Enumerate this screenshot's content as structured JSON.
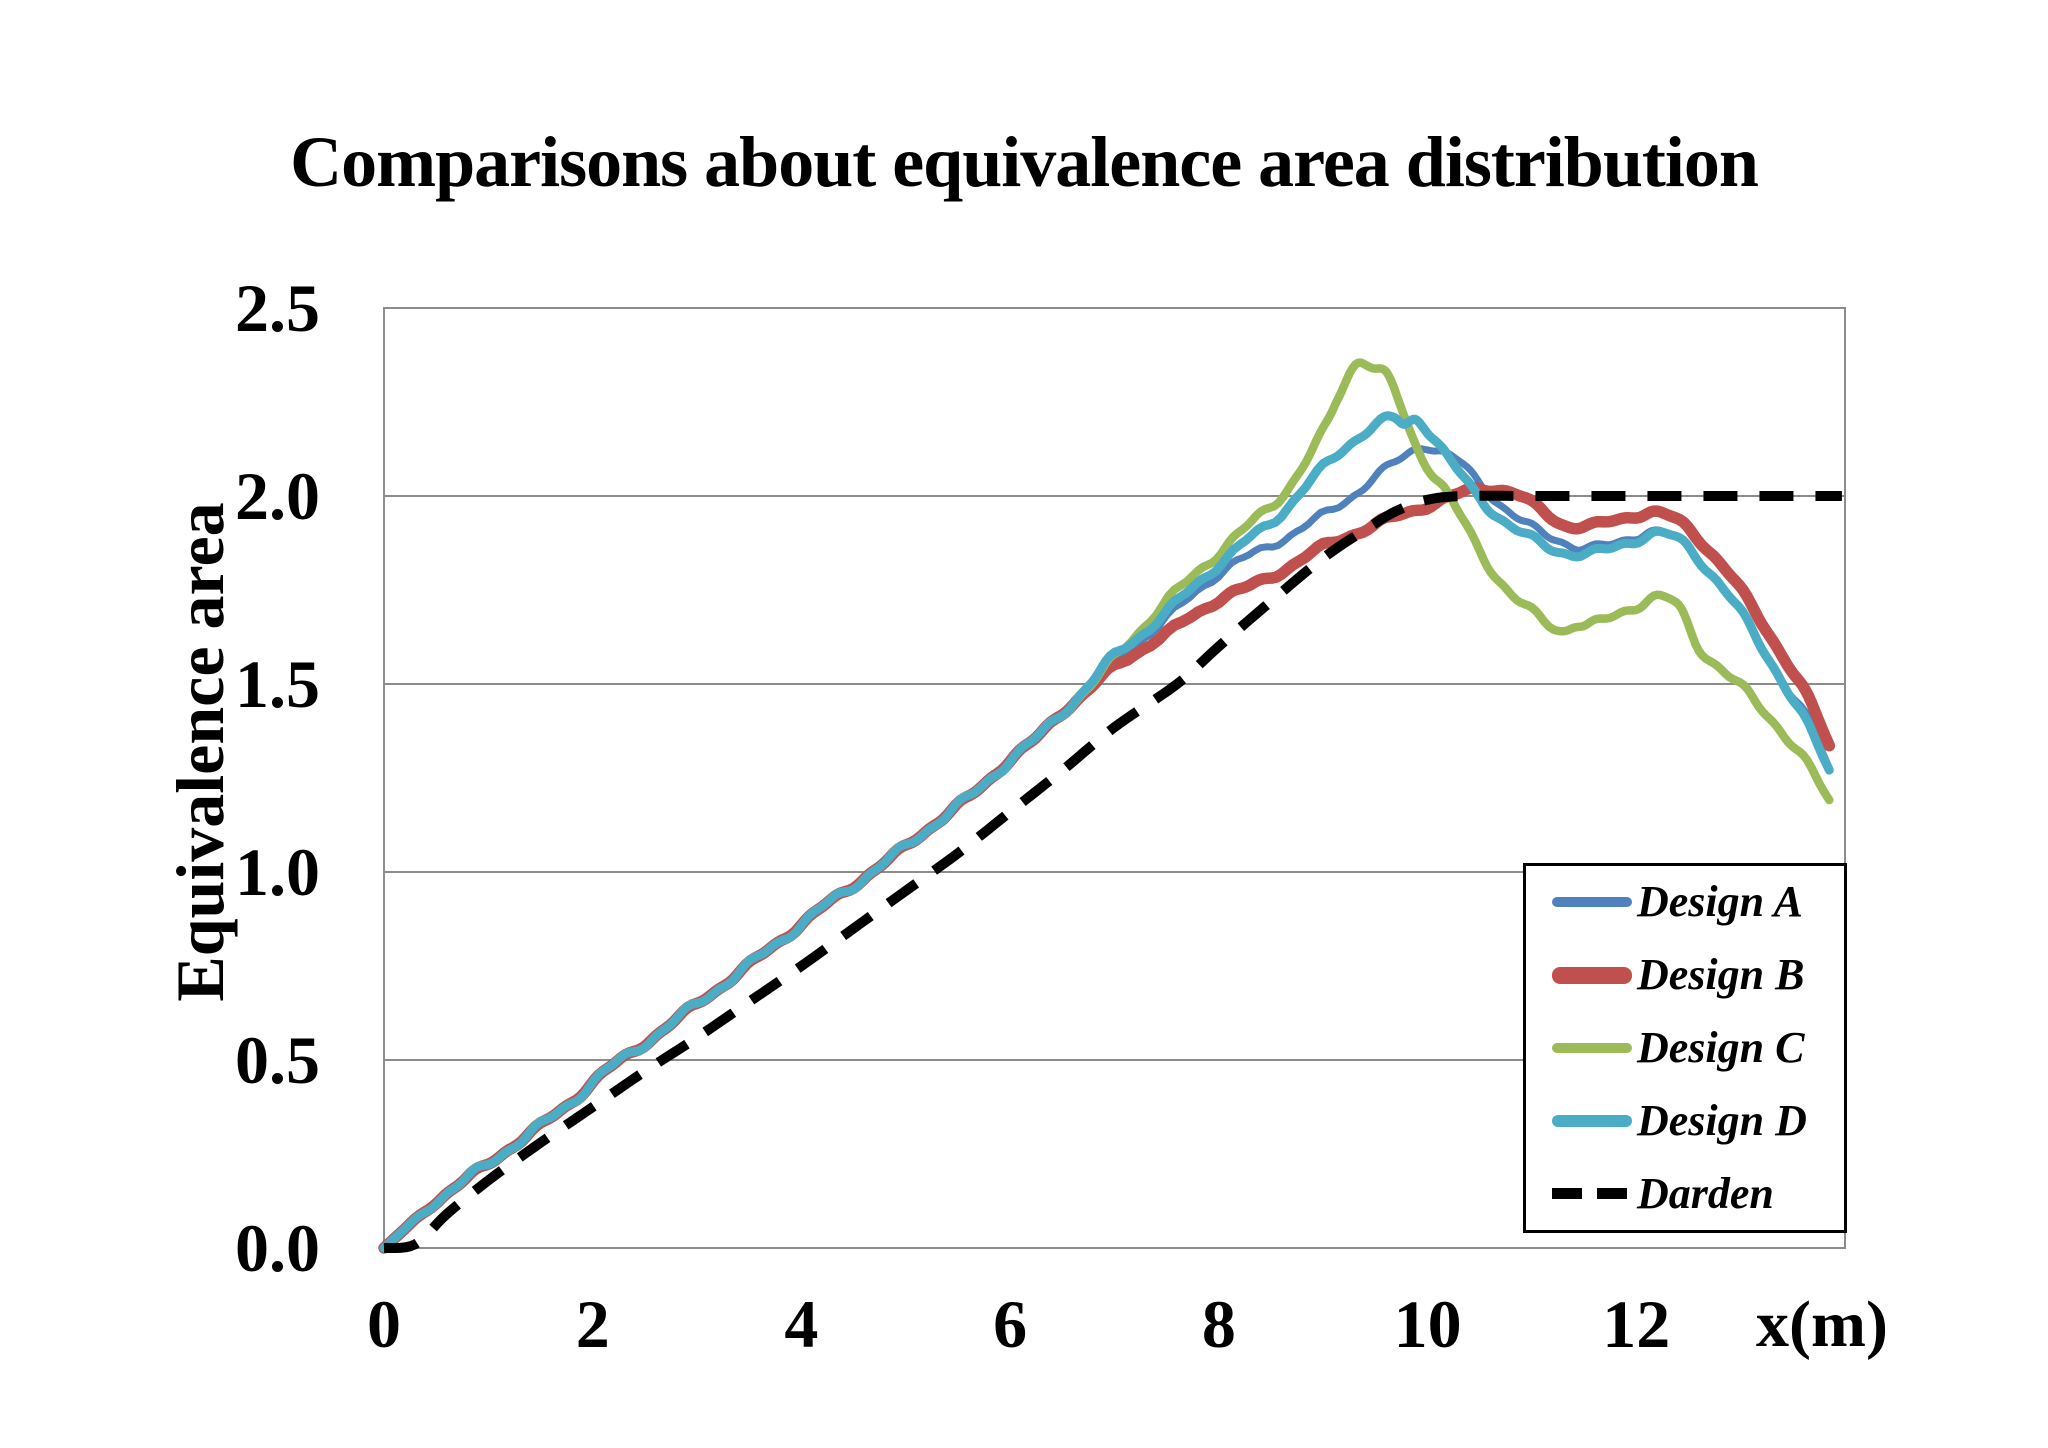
{
  "chart_data": {
    "type": "line",
    "title": "Comparisons about equivalence area distribution",
    "xlabel": "x(m)",
    "ylabel": "Equivalence area",
    "xlim": [
      0,
      14
    ],
    "ylim": [
      0,
      2.5
    ],
    "grid": "horizontal-only",
    "legend_position": "inside-bottom-right",
    "background_color": "#FFFFFF",
    "grid_color": "#8C8C8C",
    "text_color": "#000000",
    "legend_border_color": "#000000",
    "x_ticks": [
      {
        "v": 0,
        "label": "0"
      },
      {
        "v": 2,
        "label": "2"
      },
      {
        "v": 4,
        "label": "4"
      },
      {
        "v": 6,
        "label": "6"
      },
      {
        "v": 8,
        "label": "8"
      },
      {
        "v": 10,
        "label": "10"
      },
      {
        "v": 12,
        "label": "12"
      }
    ],
    "y_ticks": [
      {
        "v": 0.0,
        "label": "0.0"
      },
      {
        "v": 0.5,
        "label": "0.5"
      },
      {
        "v": 1.0,
        "label": "1.0"
      },
      {
        "v": 1.5,
        "label": "1.5"
      },
      {
        "v": 2.0,
        "label": "2.0"
      },
      {
        "v": 2.5,
        "label": "2.5"
      }
    ],
    "series": [
      {
        "name": "Design A",
        "id": "design-a",
        "color": "#4F81BD",
        "width": 7,
        "dash": null,
        "wobble": 0.008,
        "legend_swatch_height": 10,
        "points": [
          [
            0,
            0
          ],
          [
            0.2,
            0.05
          ],
          [
            0.4,
            0.1
          ],
          [
            0.6,
            0.145
          ],
          [
            0.8,
            0.185
          ],
          [
            1,
            0.225
          ],
          [
            1.2,
            0.265
          ],
          [
            1.5,
            0.325
          ],
          [
            1.8,
            0.39
          ],
          [
            2.1,
            0.465
          ],
          [
            2.4,
            0.525
          ],
          [
            2.7,
            0.585
          ],
          [
            3,
            0.65
          ],
          [
            3.3,
            0.71
          ],
          [
            3.6,
            0.775
          ],
          [
            3.9,
            0.84
          ],
          [
            4.2,
            0.905
          ],
          [
            4.5,
            0.965
          ],
          [
            4.8,
            1.025
          ],
          [
            5.1,
            1.09
          ],
          [
            5.4,
            1.155
          ],
          [
            5.7,
            1.22
          ],
          [
            6,
            1.3
          ],
          [
            6.25,
            1.355
          ],
          [
            6.5,
            1.425
          ],
          [
            6.75,
            1.49
          ],
          [
            7,
            1.56
          ],
          [
            7.5,
            1.675
          ],
          [
            8,
            1.795
          ],
          [
            8.4,
            1.855
          ],
          [
            8.8,
            1.915
          ],
          [
            9.2,
            1.985
          ],
          [
            9.5,
            2.05
          ],
          [
            9.75,
            2.1
          ],
          [
            9.95,
            2.135
          ],
          [
            10.1,
            2.12
          ],
          [
            10.3,
            2.09
          ],
          [
            10.5,
            2.035
          ],
          [
            10.75,
            1.965
          ],
          [
            11,
            1.915
          ],
          [
            11.25,
            1.885
          ],
          [
            11.5,
            1.86
          ],
          [
            11.75,
            1.87
          ],
          [
            12,
            1.895
          ],
          [
            12.15,
            1.905
          ],
          [
            12.4,
            1.885
          ],
          [
            12.65,
            1.815
          ],
          [
            12.9,
            1.73
          ],
          [
            13.15,
            1.625
          ],
          [
            13.4,
            1.51
          ],
          [
            13.65,
            1.4
          ],
          [
            13.85,
            1.275
          ]
        ]
      },
      {
        "name": "Design B",
        "id": "design-b",
        "color": "#C0504D",
        "width": 11.5,
        "dash": null,
        "wobble": 0.006,
        "legend_swatch_height": 17,
        "points": [
          [
            0,
            0
          ],
          [
            0.2,
            0.05
          ],
          [
            0.4,
            0.1
          ],
          [
            0.6,
            0.145
          ],
          [
            0.8,
            0.185
          ],
          [
            1,
            0.225
          ],
          [
            1.2,
            0.265
          ],
          [
            1.5,
            0.325
          ],
          [
            1.8,
            0.39
          ],
          [
            2.1,
            0.465
          ],
          [
            2.4,
            0.525
          ],
          [
            2.7,
            0.585
          ],
          [
            3,
            0.65
          ],
          [
            3.3,
            0.71
          ],
          [
            3.6,
            0.775
          ],
          [
            3.9,
            0.84
          ],
          [
            4.2,
            0.905
          ],
          [
            4.5,
            0.965
          ],
          [
            4.8,
            1.025
          ],
          [
            5.1,
            1.09
          ],
          [
            5.4,
            1.155
          ],
          [
            5.7,
            1.22
          ],
          [
            6,
            1.3
          ],
          [
            6.25,
            1.355
          ],
          [
            6.5,
            1.425
          ],
          [
            6.75,
            1.485
          ],
          [
            7,
            1.545
          ],
          [
            7.5,
            1.635
          ],
          [
            8,
            1.725
          ],
          [
            8.3,
            1.76
          ],
          [
            8.6,
            1.8
          ],
          [
            9,
            1.865
          ],
          [
            9.3,
            1.9
          ],
          [
            9.6,
            1.935
          ],
          [
            9.9,
            1.965
          ],
          [
            10.2,
            1.995
          ],
          [
            10.5,
            2.02
          ],
          [
            10.8,
            2.01
          ],
          [
            11.05,
            1.97
          ],
          [
            11.3,
            1.925
          ],
          [
            11.55,
            1.92
          ],
          [
            11.8,
            1.935
          ],
          [
            12,
            1.95
          ],
          [
            12.2,
            1.955
          ],
          [
            12.45,
            1.925
          ],
          [
            12.7,
            1.855
          ],
          [
            12.95,
            1.77
          ],
          [
            13.2,
            1.665
          ],
          [
            13.45,
            1.555
          ],
          [
            13.65,
            1.46
          ],
          [
            13.85,
            1.335
          ]
        ]
      },
      {
        "name": "Design C",
        "id": "design-c",
        "color": "#9BBB59",
        "width": 8.5,
        "dash": null,
        "wobble": 0.009,
        "legend_swatch_height": 10,
        "points": [
          [
            0,
            0
          ],
          [
            0.2,
            0.05
          ],
          [
            0.4,
            0.1
          ],
          [
            0.6,
            0.145
          ],
          [
            0.8,
            0.185
          ],
          [
            1,
            0.225
          ],
          [
            1.2,
            0.265
          ],
          [
            1.5,
            0.325
          ],
          [
            1.8,
            0.39
          ],
          [
            2.1,
            0.465
          ],
          [
            2.4,
            0.525
          ],
          [
            2.7,
            0.585
          ],
          [
            3,
            0.65
          ],
          [
            3.3,
            0.71
          ],
          [
            3.6,
            0.775
          ],
          [
            3.9,
            0.84
          ],
          [
            4.2,
            0.905
          ],
          [
            4.5,
            0.965
          ],
          [
            4.8,
            1.025
          ],
          [
            5.1,
            1.09
          ],
          [
            5.4,
            1.155
          ],
          [
            5.7,
            1.22
          ],
          [
            6,
            1.3
          ],
          [
            6.25,
            1.355
          ],
          [
            6.5,
            1.425
          ],
          [
            6.75,
            1.49
          ],
          [
            7,
            1.57
          ],
          [
            7.4,
            1.69
          ],
          [
            7.8,
            1.8
          ],
          [
            8.1,
            1.875
          ],
          [
            8.4,
            1.95
          ],
          [
            8.7,
            2.035
          ],
          [
            9,
            2.17
          ],
          [
            9.15,
            2.27
          ],
          [
            9.33,
            2.36
          ],
          [
            9.5,
            2.335
          ],
          [
            9.65,
            2.3
          ],
          [
            9.85,
            2.16
          ],
          [
            10.05,
            2.06
          ],
          [
            10.2,
            2
          ],
          [
            10.5,
            1.855
          ],
          [
            10.75,
            1.755
          ],
          [
            11,
            1.69
          ],
          [
            11.27,
            1.645
          ],
          [
            11.42,
            1.66
          ],
          [
            11.55,
            1.655
          ],
          [
            11.75,
            1.675
          ],
          [
            12,
            1.71
          ],
          [
            12.2,
            1.73
          ],
          [
            12.4,
            1.705
          ],
          [
            12.6,
            1.6
          ],
          [
            12.85,
            1.53
          ],
          [
            13.1,
            1.465
          ],
          [
            13.35,
            1.39
          ],
          [
            13.6,
            1.3
          ],
          [
            13.85,
            1.19
          ]
        ]
      },
      {
        "name": "Design D",
        "id": "design-d",
        "color": "#4BACC6",
        "width": 9,
        "dash": null,
        "wobble": 0.008,
        "legend_swatch_height": 12,
        "points": [
          [
            0,
            0
          ],
          [
            0.2,
            0.05
          ],
          [
            0.4,
            0.1
          ],
          [
            0.6,
            0.145
          ],
          [
            0.8,
            0.185
          ],
          [
            1,
            0.225
          ],
          [
            1.2,
            0.265
          ],
          [
            1.5,
            0.325
          ],
          [
            1.8,
            0.39
          ],
          [
            2.1,
            0.465
          ],
          [
            2.4,
            0.525
          ],
          [
            2.7,
            0.585
          ],
          [
            3,
            0.65
          ],
          [
            3.3,
            0.71
          ],
          [
            3.6,
            0.775
          ],
          [
            3.9,
            0.84
          ],
          [
            4.2,
            0.905
          ],
          [
            4.5,
            0.965
          ],
          [
            4.8,
            1.025
          ],
          [
            5.1,
            1.09
          ],
          [
            5.4,
            1.155
          ],
          [
            5.7,
            1.22
          ],
          [
            6,
            1.3
          ],
          [
            6.25,
            1.355
          ],
          [
            6.5,
            1.425
          ],
          [
            6.75,
            1.495
          ],
          [
            7,
            1.575
          ],
          [
            7.4,
            1.665
          ],
          [
            7.8,
            1.77
          ],
          [
            8.2,
            1.865
          ],
          [
            8.6,
            1.955
          ],
          [
            9,
            2.075
          ],
          [
            9.3,
            2.15
          ],
          [
            9.55,
            2.195
          ],
          [
            9.68,
            2.205
          ],
          [
            9.78,
            2.19
          ],
          [
            9.9,
            2.205
          ],
          [
            10.05,
            2.16
          ],
          [
            10.25,
            2.08
          ],
          [
            10.5,
            1.995
          ],
          [
            10.75,
            1.93
          ],
          [
            11,
            1.885
          ],
          [
            11.25,
            1.855
          ],
          [
            11.5,
            1.845
          ],
          [
            11.7,
            1.855
          ],
          [
            11.95,
            1.88
          ],
          [
            12.2,
            1.9
          ],
          [
            12.45,
            1.875
          ],
          [
            12.7,
            1.8
          ],
          [
            12.95,
            1.71
          ],
          [
            13.2,
            1.6
          ],
          [
            13.45,
            1.485
          ],
          [
            13.65,
            1.385
          ],
          [
            13.85,
            1.27
          ]
        ]
      },
      {
        "name": "Darden",
        "id": "darden",
        "color": "#000000",
        "width": 10,
        "dash": [
          34,
          22
        ],
        "wobble": 0,
        "legend_swatch_height": 11,
        "points": [
          [
            0,
            0
          ],
          [
            0.3,
            0.01
          ],
          [
            0.6,
            0.09
          ],
          [
            1,
            0.18
          ],
          [
            1.5,
            0.28
          ],
          [
            2,
            0.375
          ],
          [
            2.5,
            0.47
          ],
          [
            3,
            0.56
          ],
          [
            3.5,
            0.655
          ],
          [
            4,
            0.75
          ],
          [
            4.5,
            0.85
          ],
          [
            5,
            0.95
          ],
          [
            5.5,
            1.05
          ],
          [
            6,
            1.16
          ],
          [
            6.5,
            1.27
          ],
          [
            7,
            1.385
          ],
          [
            7.6,
            1.5
          ],
          [
            8,
            1.6
          ],
          [
            8.5,
            1.72
          ],
          [
            9,
            1.835
          ],
          [
            9.4,
            1.91
          ],
          [
            9.7,
            1.96
          ],
          [
            10,
            1.99
          ],
          [
            10.35,
            2
          ],
          [
            11,
            2
          ],
          [
            12,
            2
          ],
          [
            13,
            2
          ],
          [
            13.97,
            2
          ]
        ]
      }
    ]
  }
}
